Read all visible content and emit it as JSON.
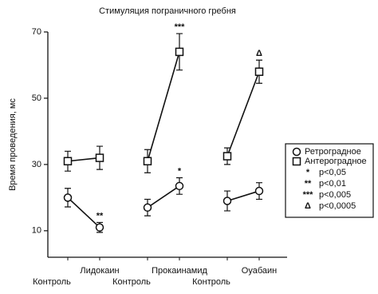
{
  "chart_data": {
    "type": "line",
    "title": "Стимуляция пограничного гребня",
    "y_label": "Время проведения, мс",
    "categories": [
      "Контроль",
      "Лидокаин",
      "Контроль",
      "Прокаинамид",
      "Контроль",
      "Оуабаин"
    ],
    "ylim": [
      2,
      70
    ],
    "yticks": [
      10,
      30,
      50,
      70
    ],
    "series": [
      {
        "name": "Ретроградное",
        "marker": "circle",
        "color": "#111111",
        "values": [
          20,
          11,
          17,
          23.5,
          19,
          22
        ],
        "errors": [
          2.8,
          1.5,
          2.5,
          2.5,
          3,
          2.5
        ],
        "annotations": [
          null,
          "**",
          null,
          "*",
          null,
          null
        ]
      },
      {
        "name": "Антероградное",
        "marker": "square",
        "color": "#111111",
        "values": [
          31,
          32,
          31,
          64,
          32.5,
          58
        ],
        "errors": [
          3,
          3.5,
          3.5,
          5.5,
          2.5,
          3.5
        ],
        "annotations": [
          null,
          null,
          null,
          "***",
          null,
          "Δ"
        ]
      }
    ],
    "significance_legend": [
      {
        "symbol": "*",
        "label": "p<0,05"
      },
      {
        "symbol": "**",
        "label": "p<0,01"
      },
      {
        "symbol": "***",
        "label": "p<0,005"
      },
      {
        "symbol": "Δ",
        "label": "p<0,0005"
      }
    ]
  }
}
